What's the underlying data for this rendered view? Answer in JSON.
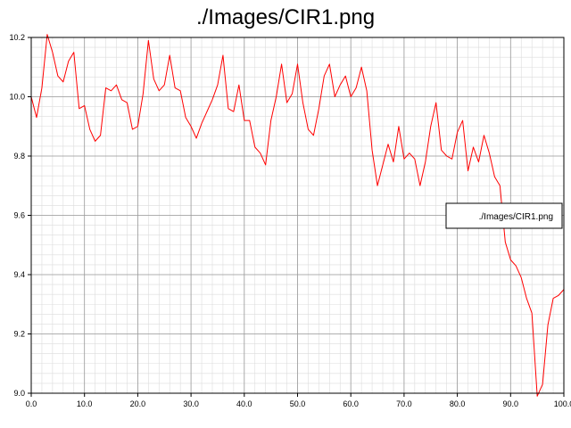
{
  "title": "./Images/CIR1.png",
  "chart_data": {
    "type": "line",
    "title": "./Images/CIR1.png",
    "xlabel": "",
    "ylabel": "",
    "xlim": [
      0,
      100
    ],
    "ylim": [
      9.0,
      10.2
    ],
    "x_ticks": [
      "0.0",
      "10.0",
      "20.0",
      "30.0",
      "40.0",
      "50.0",
      "60.0",
      "70.0",
      "80.0",
      "90.0",
      "100.0"
    ],
    "y_ticks": [
      "9.0",
      "9.2",
      "9.4",
      "9.6",
      "9.8",
      "10.0",
      "10.2"
    ],
    "grid": true,
    "legend_position": "right",
    "series": [
      {
        "name": "./Images/CIR1.png",
        "color": "#ff0000",
        "x": [
          0,
          1,
          2,
          3,
          4,
          5,
          6,
          7,
          8,
          9,
          10,
          11,
          12,
          13,
          14,
          15,
          16,
          17,
          18,
          19,
          20,
          21,
          22,
          23,
          24,
          25,
          26,
          27,
          28,
          29,
          30,
          31,
          32,
          33,
          34,
          35,
          36,
          37,
          38,
          39,
          40,
          41,
          42,
          43,
          44,
          45,
          46,
          47,
          48,
          49,
          50,
          51,
          52,
          53,
          54,
          55,
          56,
          57,
          58,
          59,
          60,
          61,
          62,
          63,
          64,
          65,
          66,
          67,
          68,
          69,
          70,
          71,
          72,
          73,
          74,
          75,
          76,
          77,
          78,
          79,
          80,
          81,
          82,
          83,
          84,
          85,
          86,
          87,
          88,
          89,
          90,
          91,
          92,
          93,
          94,
          95,
          96,
          97,
          98,
          99,
          100
        ],
        "values": [
          10.0,
          9.93,
          10.03,
          10.21,
          10.15,
          10.07,
          10.05,
          10.12,
          10.15,
          9.96,
          9.97,
          9.89,
          9.85,
          9.87,
          10.03,
          10.02,
          10.04,
          9.99,
          9.98,
          9.89,
          9.9,
          10.01,
          10.19,
          10.06,
          10.02,
          10.04,
          10.14,
          10.03,
          10.02,
          9.93,
          9.9,
          9.86,
          9.91,
          9.95,
          9.99,
          10.04,
          10.14,
          9.96,
          9.95,
          10.04,
          9.92,
          9.92,
          9.83,
          9.81,
          9.77,
          9.92,
          10.0,
          10.11,
          9.98,
          10.01,
          10.11,
          9.98,
          9.89,
          9.87,
          9.96,
          10.07,
          10.11,
          10.0,
          10.04,
          10.07,
          10.0,
          10.03,
          10.1,
          10.02,
          9.82,
          9.7,
          9.77,
          9.84,
          9.78,
          9.9,
          9.79,
          9.81,
          9.79,
          9.7,
          9.78,
          9.9,
          9.98,
          9.82,
          9.8,
          9.79,
          9.88,
          9.92,
          9.75,
          9.83,
          9.78,
          9.87,
          9.81,
          9.73,
          9.7,
          9.51,
          9.45,
          9.43,
          9.39,
          9.32,
          9.27,
          8.99,
          9.03,
          9.23,
          9.32,
          9.33,
          9.35
        ]
      }
    ]
  }
}
